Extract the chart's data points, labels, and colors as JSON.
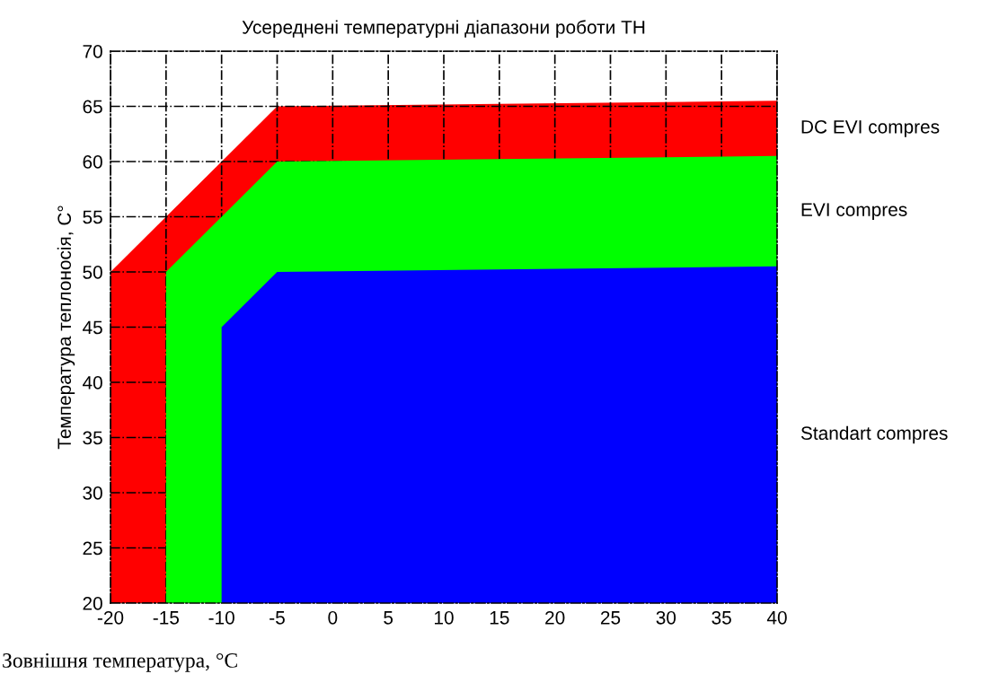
{
  "chart_data": {
    "type": "area",
    "title": "Усереднені температурні діапазони роботи ТН",
    "xlabel": "Зовнішня температура, °С",
    "ylabel": "Температура теплоносія, С°",
    "xlim": [
      -20,
      40
    ],
    "ylim": [
      20,
      70
    ],
    "xticks": [
      -20,
      -15,
      -10,
      -5,
      0,
      5,
      10,
      15,
      20,
      25,
      30,
      35,
      40
    ],
    "yticks": [
      20,
      25,
      30,
      35,
      40,
      45,
      50,
      55,
      60,
      65,
      70
    ],
    "grid": true,
    "legend": false,
    "series": [
      {
        "name": "DC EVI compres",
        "color": "#ff0000",
        "x": [
          -20,
          -5,
          40
        ],
        "values": [
          50,
          65,
          65.5
        ]
      },
      {
        "name": "EVI compres",
        "color": "#00ff00",
        "x": [
          -15,
          -5,
          40
        ],
        "values": [
          50,
          60,
          60.5
        ]
      },
      {
        "name": "Standart compres",
        "color": "#0000ff",
        "x": [
          -10,
          -5,
          40
        ],
        "values": [
          45,
          50,
          50.5
        ]
      }
    ]
  }
}
